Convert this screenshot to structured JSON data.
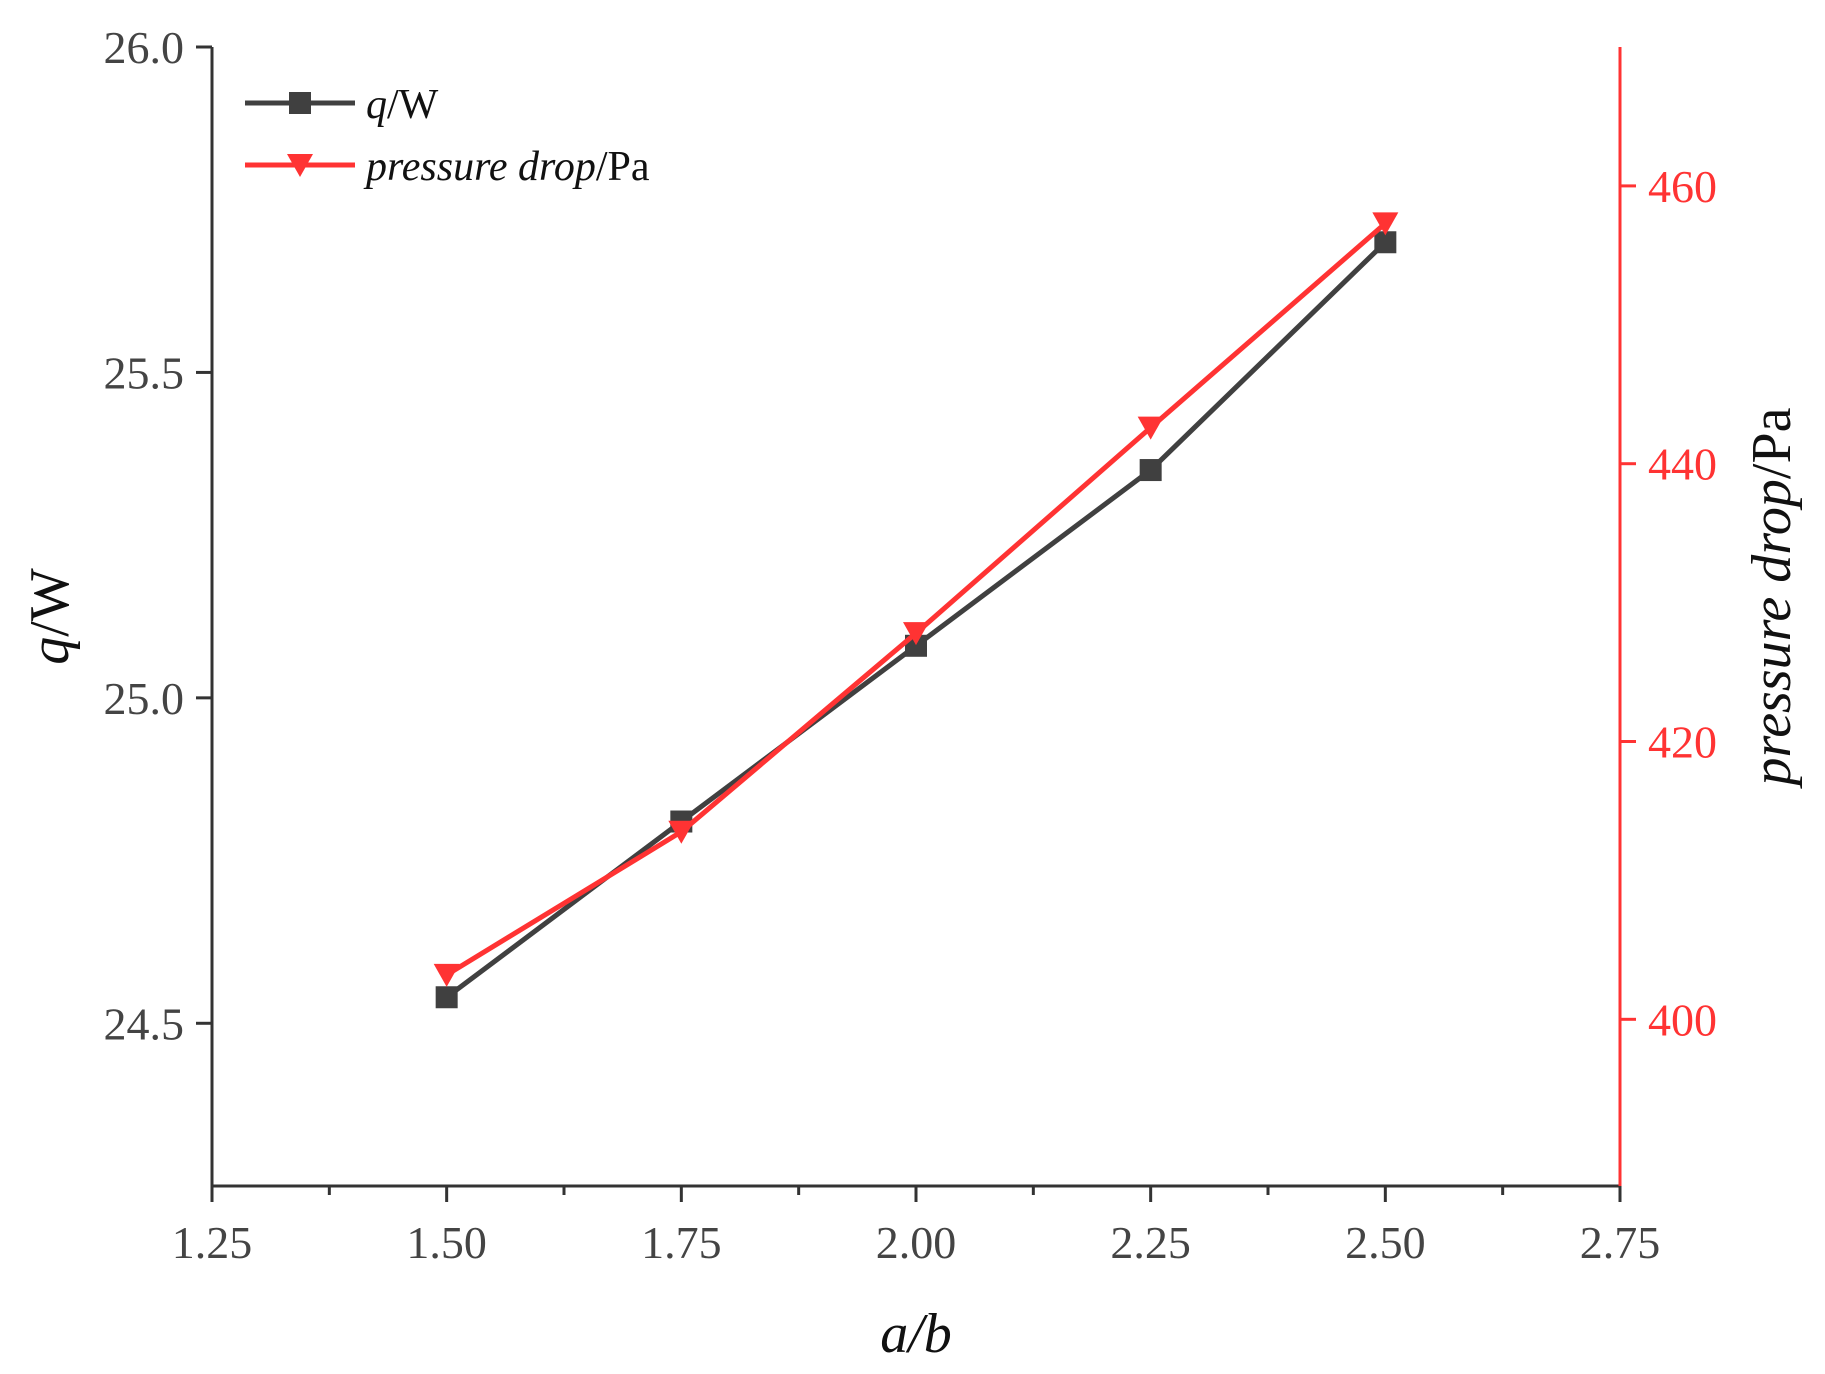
{
  "chart_data": {
    "type": "line",
    "x_axis": {
      "label_italic": "a/b",
      "label_plain": "",
      "range": [
        1.25,
        2.75
      ],
      "ticks": [
        1.25,
        1.5,
        1.75,
        2.0,
        2.25,
        2.5,
        2.75
      ],
      "tick_labels": [
        "1.25",
        "1.50",
        "1.75",
        "2.00",
        "2.25",
        "2.50",
        "2.75"
      ],
      "minor_ticks": true
    },
    "y_axis_left": {
      "label_italic": "q",
      "label_plain": "/W",
      "range": [
        24.25,
        26.0
      ],
      "ticks": [
        24.5,
        25.0,
        25.5,
        26.0
      ],
      "tick_labels": [
        "24.5",
        "25.0",
        "25.5",
        "26.0"
      ],
      "minor_ticks": true,
      "color": "#333333"
    },
    "y_axis_right": {
      "label_italic": "pressure drop",
      "label_plain": "/Pa",
      "range": [
        388,
        470
      ],
      "ticks": [
        400,
        420,
        440,
        460
      ],
      "tick_labels": [
        "400",
        "420",
        "440",
        "460"
      ],
      "color": "#ff3333"
    },
    "series": [
      {
        "name_italic": "q",
        "name_plain": "/W",
        "axis": "left",
        "marker": "square",
        "color": "#404040",
        "x": [
          1.5,
          1.75,
          2.0,
          2.25,
          2.5
        ],
        "y": [
          24.54,
          24.81,
          25.08,
          25.35,
          25.7
        ]
      },
      {
        "name_italic": "pressure drop",
        "name_plain": "/Pa",
        "axis": "right",
        "marker": "triangle-down",
        "color": "#ff3333",
        "x": [
          1.5,
          1.75,
          2.0,
          2.25,
          2.5
        ],
        "y": [
          403.2,
          413.5,
          427.8,
          442.6,
          457.3
        ]
      }
    ],
    "legend": {
      "position": "top-left"
    },
    "grid": false
  }
}
